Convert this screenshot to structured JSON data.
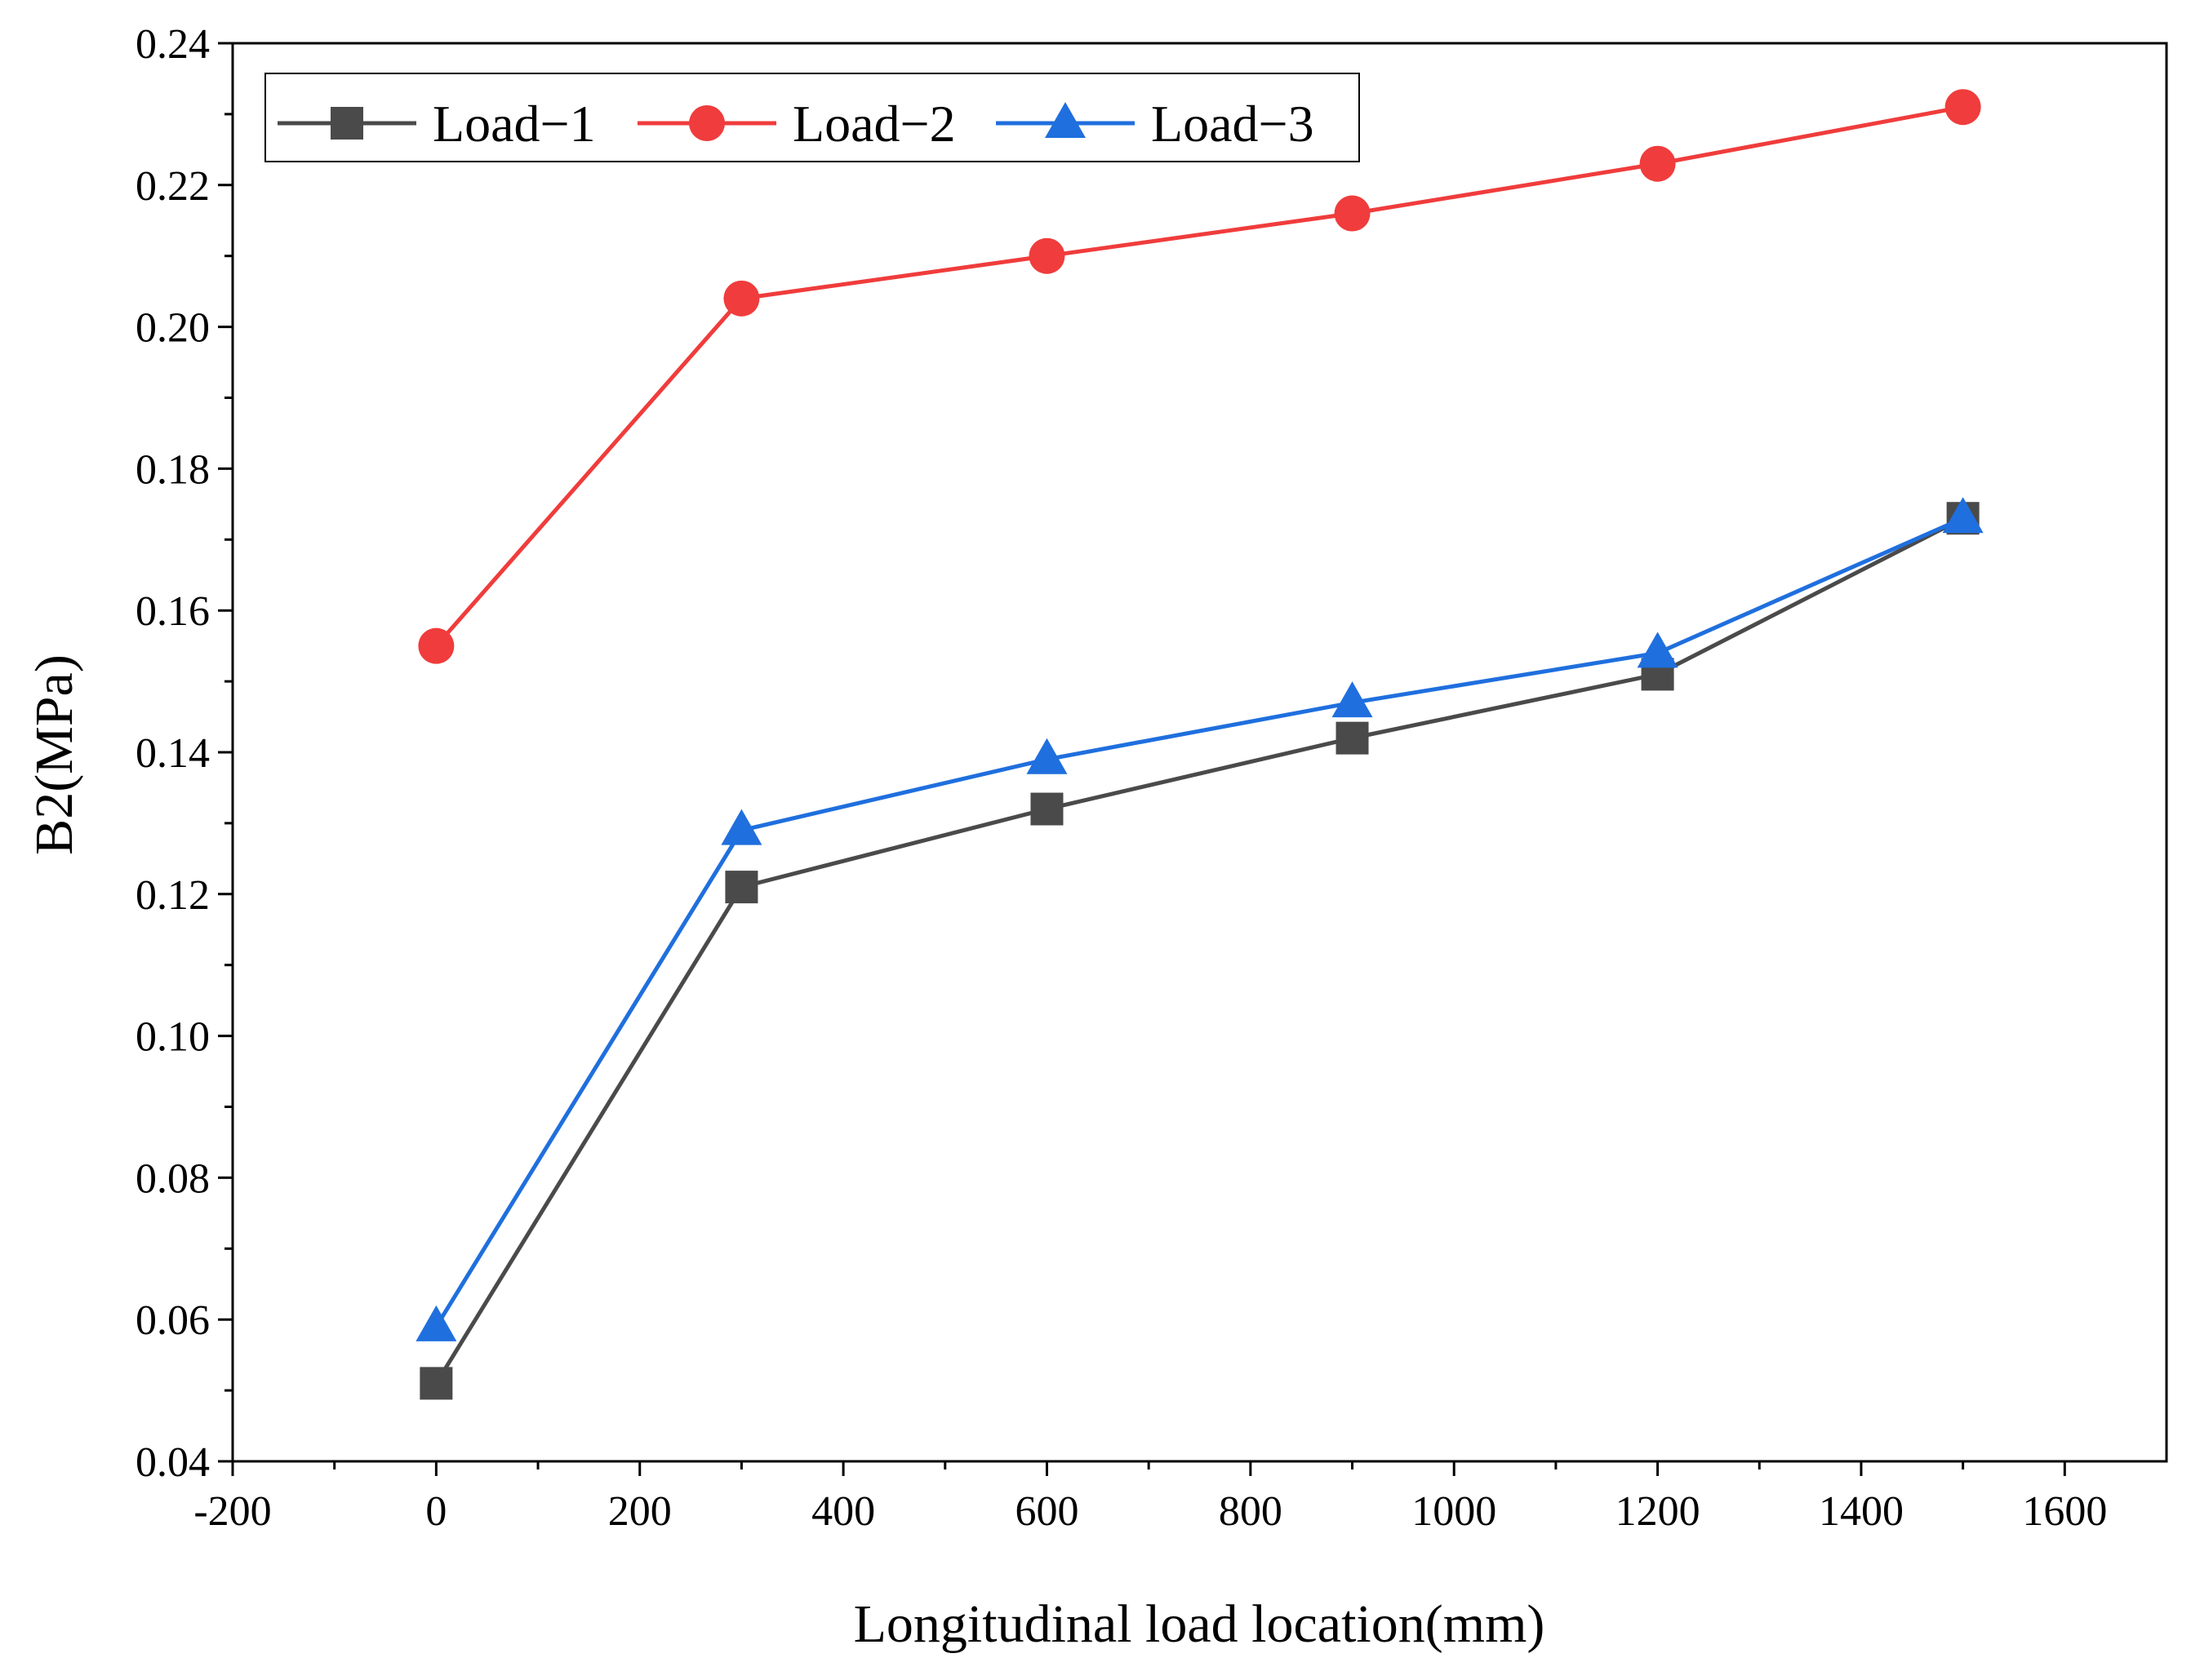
{
  "chart_data": {
    "type": "line",
    "title": "",
    "xlabel": "Longitudinal load location(mm)",
    "ylabel": "B2(MPa)",
    "xlim": [
      -200,
      1700
    ],
    "ylim": [
      0.04,
      0.24
    ],
    "x_ticks": [
      -200,
      0,
      200,
      400,
      600,
      800,
      1000,
      1200,
      1400,
      1600
    ],
    "x_tick_labels": [
      "-200",
      "0",
      "200",
      "400",
      "600",
      "800",
      "1000",
      "1200",
      "1400",
      "1600"
    ],
    "y_ticks": [
      0.04,
      0.06,
      0.08,
      0.1,
      0.12,
      0.14,
      0.16,
      0.18,
      0.2,
      0.22,
      0.24
    ],
    "y_tick_labels": [
      "0.04",
      "0.06",
      "0.08",
      "0.10",
      "0.12",
      "0.14",
      "0.16",
      "0.18",
      "0.20",
      "0.22",
      "0.24"
    ],
    "grid": false,
    "legend_position": "top-left",
    "x": [
      0,
      300,
      600,
      900,
      1200,
      1500
    ],
    "series": [
      {
        "name": "Load−1",
        "marker": "square",
        "color": "#4a4a4a",
        "values": [
          0.051,
          0.121,
          0.132,
          0.142,
          0.151,
          0.173
        ]
      },
      {
        "name": "Load−2",
        "marker": "circle",
        "color": "#f03c3c",
        "values": [
          0.155,
          0.204,
          0.21,
          0.216,
          0.223,
          0.231
        ]
      },
      {
        "name": "Load−3",
        "marker": "triangle",
        "color": "#1f6fde",
        "values": [
          0.059,
          0.129,
          0.139,
          0.147,
          0.154,
          0.173
        ]
      }
    ]
  }
}
